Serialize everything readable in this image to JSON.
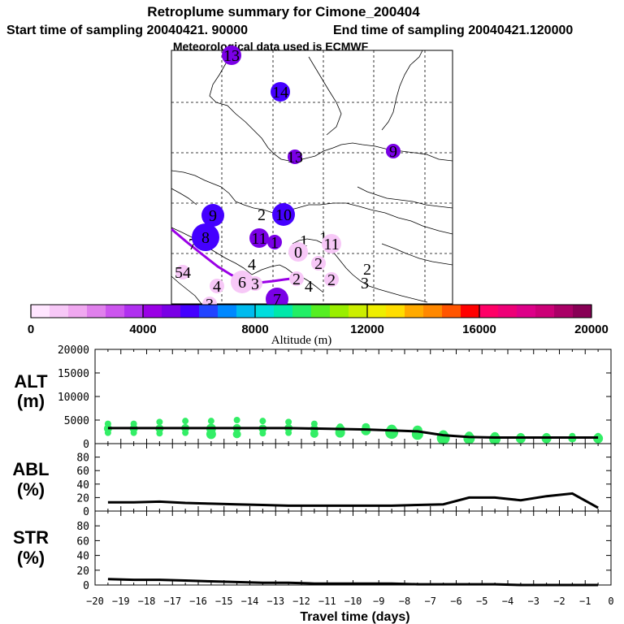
{
  "title": "Retroplume summary for Cimone_200404",
  "start_label": "Start time of sampling 20040421. 90000",
  "end_label": "End time of sampling 20040421.120000",
  "met_label": "Meteorological data used is ECMWF",
  "colors": {
    "marker_green": "#33ee66",
    "trajectory": "#9a00e6",
    "line": "#000000"
  },
  "colorbar": {
    "xlabel": "Altitude (m)",
    "ticks": [
      0,
      4000,
      8000,
      12000,
      16000,
      20000
    ],
    "tick_labels": [
      "0",
      "4000",
      "8000",
      "12000",
      "16000",
      "20000"
    ],
    "colors": [
      "#ffe6ff",
      "#f7c8f7",
      "#f0a8f0",
      "#e080ec",
      "#cc55ee",
      "#b030f0",
      "#9a00e6",
      "#7a00e6",
      "#4400ff",
      "#2244ff",
      "#0088ff",
      "#00bbee",
      "#00dddd",
      "#00e8aa",
      "#22ee66",
      "#55ee22",
      "#99ee00",
      "#ccee00",
      "#eeee00",
      "#ffdd00",
      "#ffaa00",
      "#ff8800",
      "#ff5500",
      "#ff0000",
      "#ff0066",
      "#ee0077",
      "#dd0088",
      "#cc0077",
      "#aa0066",
      "#880055"
    ]
  },
  "map": {
    "labels": [
      {
        "text": "13",
        "alt": 5200,
        "size": "m"
      },
      {
        "text": "14",
        "alt": 5400,
        "size": "m"
      },
      {
        "text": "13",
        "alt": 5000,
        "size": "s"
      },
      {
        "text": "9",
        "alt": 5300,
        "size": "s"
      },
      {
        "text": "9",
        "alt": 5600,
        "size": "l"
      },
      {
        "text": "2",
        "alt": 0,
        "size": "none"
      },
      {
        "text": "10",
        "alt": 5400,
        "size": "l"
      },
      {
        "text": "7",
        "alt": 5000,
        "size": "none"
      },
      {
        "text": "8",
        "alt": 5800,
        "size": "xl"
      },
      {
        "text": "11",
        "alt": 5000,
        "size": "m"
      },
      {
        "text": "1",
        "alt": 5000,
        "size": "s"
      },
      {
        "text": "1",
        "alt": 0,
        "size": "none"
      },
      {
        "text": "1",
        "alt": 0,
        "size": "none"
      },
      {
        "text": "11",
        "alt": 800,
        "size": "m"
      },
      {
        "text": "0",
        "alt": 900,
        "size": "m"
      },
      {
        "text": "2",
        "alt": 900,
        "size": "s"
      },
      {
        "text": "2",
        "alt": 0,
        "size": "none"
      },
      {
        "text": "3",
        "alt": 0,
        "size": "none"
      },
      {
        "text": "54",
        "alt": 800,
        "size": "s"
      },
      {
        "text": "4",
        "alt": 0,
        "size": "none"
      },
      {
        "text": "4",
        "alt": 800,
        "size": "s"
      },
      {
        "text": "6",
        "alt": 1200,
        "size": "l"
      },
      {
        "text": "3",
        "alt": 800,
        "size": "s"
      },
      {
        "text": "2",
        "alt": 1000,
        "size": "s"
      },
      {
        "text": "4",
        "alt": 0,
        "size": "none"
      },
      {
        "text": "2",
        "alt": 800,
        "size": "s"
      },
      {
        "text": "7",
        "alt": 5300,
        "size": "l"
      },
      {
        "text": "3",
        "alt": 800,
        "size": "s"
      }
    ]
  },
  "chart_data": [
    {
      "type": "line+scatter",
      "ylabel": "ALT\n(m)",
      "ylabel_lines": [
        "ALT",
        "(m)"
      ],
      "ylim": [
        0,
        20000
      ],
      "yticks": [
        0,
        5000,
        10000,
        15000,
        20000
      ],
      "ytick_labels": [
        "0",
        "5000",
        "10000",
        "15000",
        "20000"
      ],
      "xlim": [
        -20,
        0
      ],
      "x": [
        -19.5,
        -18.5,
        -17.5,
        -16.5,
        -15.5,
        -14.5,
        -13.5,
        -12.5,
        -11.5,
        -10.5,
        -9.5,
        -8.5,
        -7.5,
        -6.5,
        -5.5,
        -4.5,
        -3.5,
        -2.5,
        -1.5,
        -0.5
      ],
      "line_values": [
        3300,
        3300,
        3300,
        3300,
        3300,
        3300,
        3300,
        3300,
        3200,
        3100,
        3000,
        2800,
        2600,
        1800,
        1400,
        1300,
        1300,
        1300,
        1300,
        1300
      ],
      "scatter_clusters": [
        {
          "x": -19.5,
          "pts": [
            [
              4200,
              4
            ],
            [
              3200,
              5
            ],
            [
              2300,
              4
            ]
          ]
        },
        {
          "x": -18.5,
          "pts": [
            [
              4200,
              4
            ],
            [
              3200,
              5
            ],
            [
              2300,
              4
            ]
          ]
        },
        {
          "x": -17.5,
          "pts": [
            [
              4600,
              4
            ],
            [
              3200,
              5
            ],
            [
              2200,
              4
            ]
          ]
        },
        {
          "x": -16.5,
          "pts": [
            [
              4800,
              4
            ],
            [
              3300,
              5
            ],
            [
              2300,
              4
            ]
          ]
        },
        {
          "x": -15.5,
          "pts": [
            [
              4800,
              4
            ],
            [
              3200,
              6
            ],
            [
              2000,
              6
            ]
          ]
        },
        {
          "x": -14.5,
          "pts": [
            [
              5000,
              4
            ],
            [
              3300,
              5
            ],
            [
              2000,
              5
            ]
          ]
        },
        {
          "x": -13.5,
          "pts": [
            [
              4800,
              4
            ],
            [
              3200,
              5
            ],
            [
              2200,
              4
            ]
          ]
        },
        {
          "x": -12.5,
          "pts": [
            [
              4600,
              4
            ],
            [
              3300,
              5
            ],
            [
              2300,
              4
            ]
          ]
        },
        {
          "x": -11.5,
          "pts": [
            [
              4200,
              4
            ],
            [
              3100,
              5
            ],
            [
              2100,
              5
            ]
          ]
        },
        {
          "x": -10.5,
          "pts": [
            [
              3600,
              4
            ],
            [
              3000,
              6
            ],
            [
              2300,
              6
            ]
          ]
        },
        {
          "x": -9.5,
          "pts": [
            [
              3500,
              5
            ],
            [
              2800,
              6
            ]
          ]
        },
        {
          "x": -8.5,
          "pts": [
            [
              3000,
              6
            ],
            [
              2400,
              8
            ]
          ]
        },
        {
          "x": -7.5,
          "pts": [
            [
              2800,
              6
            ],
            [
              2000,
              7
            ]
          ]
        },
        {
          "x": -6.5,
          "pts": [
            [
              1800,
              6
            ],
            [
              1200,
              8
            ]
          ]
        },
        {
          "x": -5.5,
          "pts": [
            [
              1700,
              5
            ],
            [
              1100,
              7
            ]
          ]
        },
        {
          "x": -4.5,
          "pts": [
            [
              1600,
              5
            ],
            [
              1000,
              7
            ]
          ]
        },
        {
          "x": -3.5,
          "pts": [
            [
              1400,
              5
            ],
            [
              1100,
              6
            ]
          ]
        },
        {
          "x": -2.5,
          "pts": [
            [
              1400,
              5
            ],
            [
              1100,
              6
            ]
          ]
        },
        {
          "x": -1.5,
          "pts": [
            [
              1600,
              4
            ],
            [
              1100,
              5
            ]
          ]
        },
        {
          "x": -0.5,
          "pts": [
            [
              1600,
              4
            ],
            [
              1100,
              6
            ]
          ]
        }
      ]
    },
    {
      "type": "line",
      "ylabel_lines": [
        "ABL",
        "(%)"
      ],
      "ylim": [
        0,
        100
      ],
      "yticks": [
        0,
        20,
        40,
        60,
        80
      ],
      "ytick_labels": [
        "0",
        "20",
        "40",
        "60",
        "80"
      ],
      "xlim": [
        -20,
        0
      ],
      "x": [
        -19.5,
        -18.5,
        -17.5,
        -16.5,
        -15.5,
        -14.5,
        -13.5,
        -12.5,
        -11.5,
        -10.5,
        -9.5,
        -8.5,
        -7.5,
        -6.5,
        -5.5,
        -4.5,
        -3.5,
        -2.5,
        -1.5,
        -0.5
      ],
      "values": [
        13,
        13,
        14,
        12,
        11,
        10,
        9,
        8,
        8,
        8,
        8,
        8,
        9,
        10,
        20,
        20,
        16,
        22,
        26,
        5
      ]
    },
    {
      "type": "line",
      "ylabel_lines": [
        "STR",
        "(%)"
      ],
      "ylim": [
        0,
        100
      ],
      "yticks": [
        0,
        20,
        40,
        60,
        80
      ],
      "ytick_labels": [
        "0",
        "20",
        "40",
        "60",
        "80"
      ],
      "xlim": [
        -20,
        0
      ],
      "x": [
        -19.5,
        -18.5,
        -17.5,
        -16.5,
        -15.5,
        -14.5,
        -13.5,
        -12.5,
        -11.5,
        -10.5,
        -9.5,
        -8.5,
        -7.5,
        -6.5,
        -5.5,
        -4.5,
        -3.5,
        -2.5,
        -1.5,
        -0.5
      ],
      "values": [
        8,
        7,
        7,
        6,
        5,
        4,
        3,
        3,
        2,
        2,
        2,
        2,
        1,
        1,
        1,
        1,
        0,
        0,
        0,
        0
      ],
      "xlabel": "Travel time (days)",
      "xticks": [
        -20,
        -19,
        -18,
        -17,
        -16,
        -15,
        -14,
        -13,
        -12,
        -11,
        -10,
        -9,
        -8,
        -7,
        -6,
        -5,
        -4,
        -3,
        -2,
        -1,
        0
      ],
      "xtick_labels": [
        "−20",
        "−19",
        "−18",
        "−17",
        "−16",
        "−15",
        "−14",
        "−13",
        "−12",
        "−11",
        "−10",
        "−9",
        "−8",
        "−7",
        "−6",
        "−5",
        "−4",
        "−3",
        "−2",
        "−1",
        "0"
      ]
    }
  ]
}
